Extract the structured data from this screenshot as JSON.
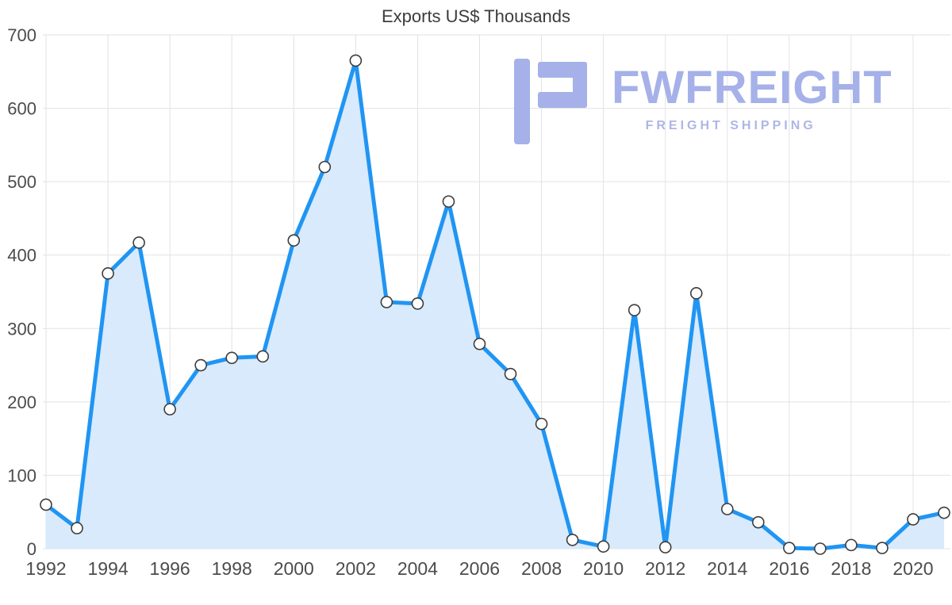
{
  "chart_data": {
    "type": "area",
    "title": "Exports US$ Thousands",
    "x": [
      1992,
      1993,
      1994,
      1995,
      1996,
      1997,
      1998,
      1999,
      2000,
      2001,
      2002,
      2003,
      2004,
      2005,
      2006,
      2007,
      2008,
      2009,
      2010,
      2011,
      2012,
      2013,
      2014,
      2015,
      2016,
      2017,
      2018,
      2019,
      2020,
      2021
    ],
    "values": [
      60,
      28,
      375,
      417,
      190,
      250,
      260,
      262,
      420,
      520,
      665,
      336,
      334,
      473,
      279,
      238,
      170,
      12,
      3,
      325,
      2,
      348,
      54,
      36,
      1,
      0,
      5,
      1,
      40,
      49
    ],
    "xlabel": "",
    "ylabel": "",
    "ylim": [
      0,
      700
    ],
    "yticks": [
      0,
      100,
      200,
      300,
      400,
      500,
      600,
      700
    ],
    "xticks": [
      1992,
      1994,
      1996,
      1998,
      2000,
      2002,
      2004,
      2006,
      2008,
      2010,
      2012,
      2014,
      2016,
      2018,
      2020
    ],
    "grid": true,
    "legend": "none",
    "colors": {
      "line": "#2095f3",
      "fill": "#d8eafc",
      "point_fill": "#ffffff",
      "point_stroke": "#3d3d3d",
      "grid": "#e2e2e2"
    }
  },
  "watermark": {
    "brand": "FWFREIGHT",
    "tagline": "FREIGHT SHIPPING",
    "color": "#a5b1e8",
    "tagline_color": "#aeb6e6"
  }
}
